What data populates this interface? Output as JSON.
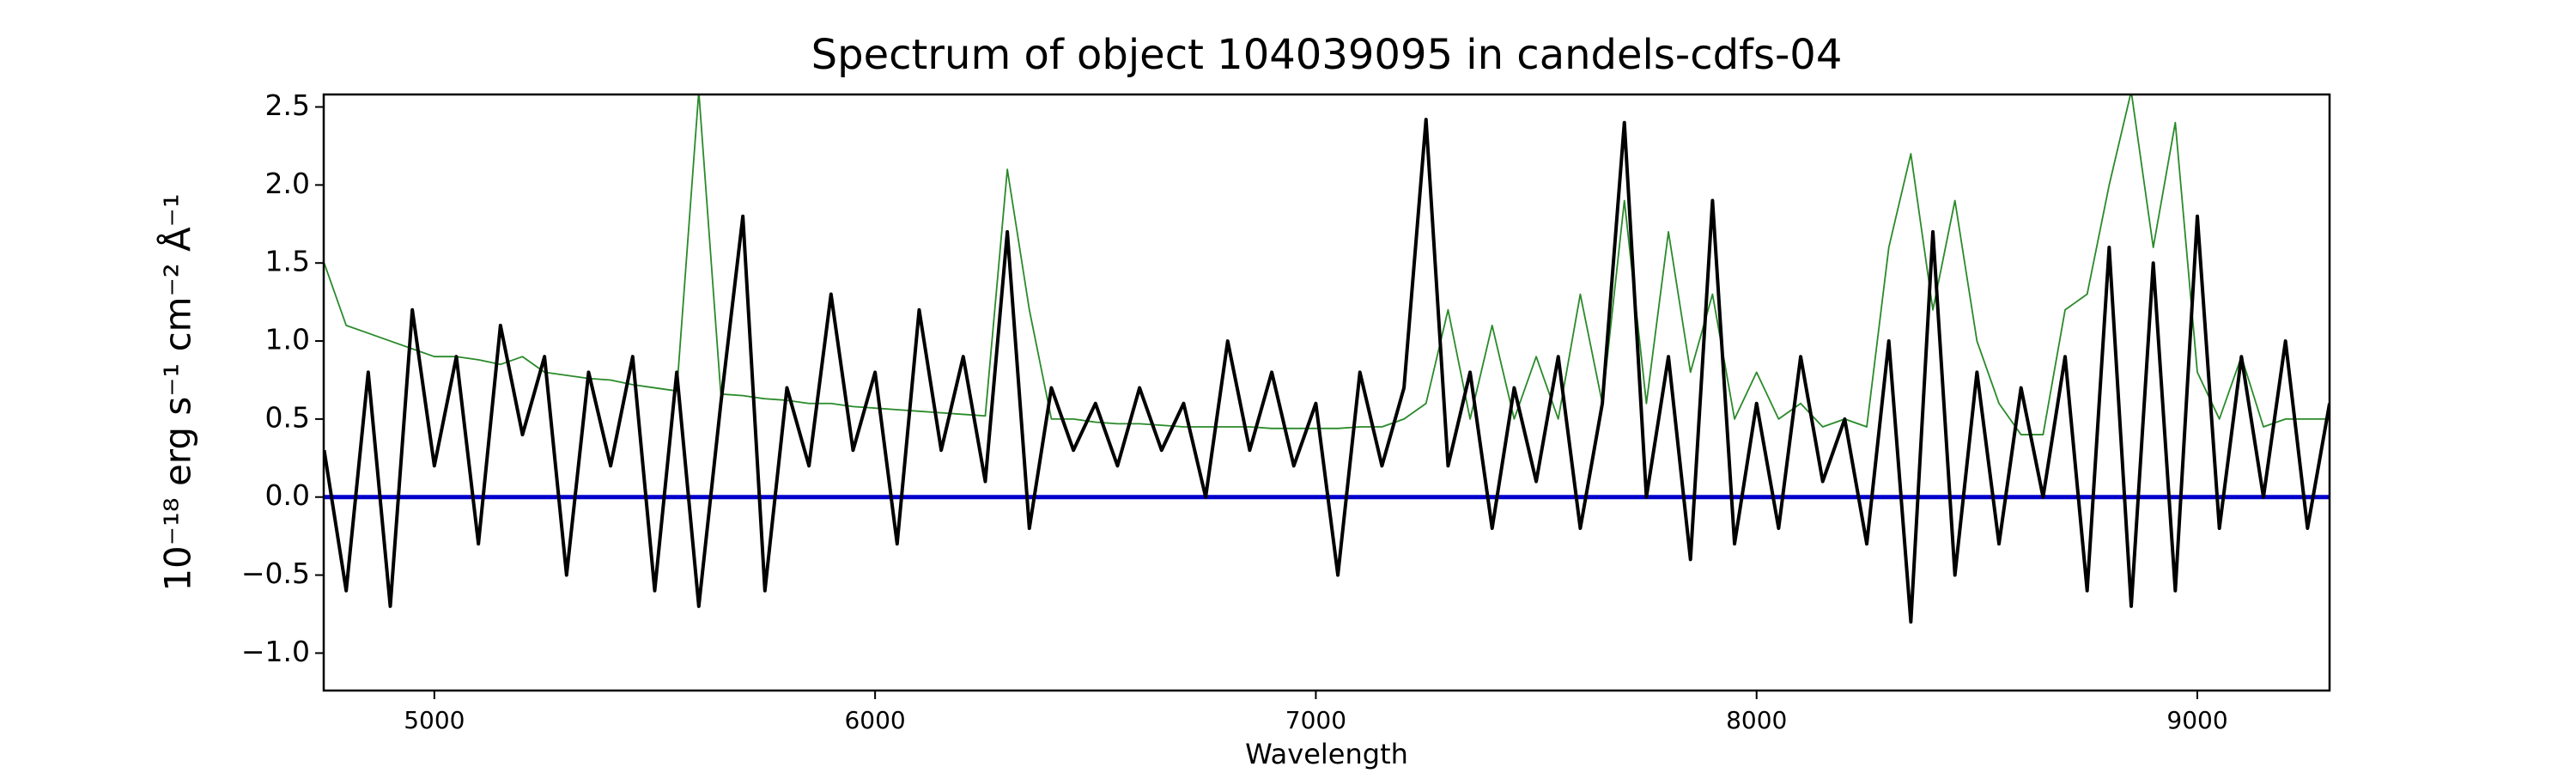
{
  "chart_data": {
    "type": "line",
    "title": "Spectrum of object 104039095 in candels-cdfs-04",
    "xlabel": "Wavelength",
    "ylabel": "10⁻¹⁸ erg s⁻¹ cm⁻² Å⁻¹",
    "x": [
      4750,
      4800,
      4850,
      4900,
      4950,
      5000,
      5050,
      5100,
      5150,
      5200,
      5250,
      5300,
      5350,
      5400,
      5450,
      5500,
      5550,
      5600,
      5650,
      5700,
      5750,
      5800,
      5850,
      5900,
      5950,
      6000,
      6050,
      6100,
      6150,
      6200,
      6250,
      6300,
      6350,
      6400,
      6450,
      6500,
      6550,
      6600,
      6650,
      6700,
      6750,
      6800,
      6850,
      6900,
      6950,
      7000,
      7050,
      7100,
      7150,
      7200,
      7250,
      7300,
      7350,
      7400,
      7450,
      7500,
      7550,
      7600,
      7650,
      7700,
      7750,
      7800,
      7850,
      7900,
      7950,
      8000,
      8050,
      8100,
      8150,
      8200,
      8250,
      8300,
      8350,
      8400,
      8450,
      8500,
      8550,
      8600,
      8650,
      8700,
      8750,
      8800,
      8850,
      8900,
      8950,
      9000,
      9050,
      9100,
      9150,
      9200,
      9250,
      9300
    ],
    "series": [
      {
        "color": "#2a8a2a",
        "width": 1.8,
        "values": [
          1.5,
          1.1,
          1.05,
          1.0,
          0.95,
          0.9,
          0.9,
          0.88,
          0.85,
          0.9,
          0.8,
          0.78,
          0.76,
          0.75,
          0.72,
          0.7,
          0.68,
          2.6,
          0.66,
          0.65,
          0.63,
          0.62,
          0.6,
          0.6,
          0.58,
          0.57,
          0.56,
          0.55,
          0.54,
          0.53,
          0.52,
          2.1,
          1.2,
          0.5,
          0.5,
          0.48,
          0.47,
          0.47,
          0.46,
          0.45,
          0.45,
          0.45,
          0.45,
          0.44,
          0.44,
          0.44,
          0.44,
          0.45,
          0.45,
          0.5,
          0.6,
          1.2,
          0.5,
          1.1,
          0.5,
          0.9,
          0.5,
          1.3,
          0.6,
          1.9,
          0.6,
          1.7,
          0.8,
          1.3,
          0.5,
          0.8,
          0.5,
          0.6,
          0.45,
          0.5,
          0.45,
          1.6,
          2.2,
          1.2,
          1.9,
          1.0,
          0.6,
          0.4,
          0.4,
          1.2,
          1.3,
          2.0,
          2.6,
          1.6,
          2.4,
          0.8,
          0.5,
          0.9,
          0.45,
          0.5,
          0.5,
          0.5
        ]
      },
      {
        "color": "#000000",
        "width": 4,
        "values": [
          0.3,
          -0.6,
          0.8,
          -0.7,
          1.2,
          0.2,
          0.9,
          -0.3,
          1.1,
          0.4,
          0.9,
          -0.5,
          0.8,
          0.2,
          0.9,
          -0.6,
          0.8,
          -0.7,
          0.6,
          1.8,
          -0.6,
          0.7,
          0.2,
          1.3,
          0.3,
          0.8,
          -0.3,
          1.2,
          0.3,
          0.9,
          0.1,
          1.7,
          -0.2,
          0.7,
          0.3,
          0.6,
          0.2,
          0.7,
          0.3,
          0.6,
          0.0,
          1.0,
          0.3,
          0.8,
          0.2,
          0.6,
          -0.5,
          0.8,
          0.2,
          0.7,
          2.42,
          0.2,
          0.8,
          -0.2,
          0.7,
          0.1,
          0.9,
          -0.2,
          0.6,
          2.4,
          0.0,
          0.9,
          -0.4,
          1.9,
          -0.3,
          0.6,
          -0.2,
          0.9,
          0.1,
          0.5,
          -0.3,
          1.0,
          -0.8,
          1.7,
          -0.5,
          0.8,
          -0.3,
          0.7,
          0.0,
          0.9,
          -0.6,
          1.6,
          -0.7,
          1.5,
          -0.6,
          1.8,
          -0.2,
          0.9,
          0.0,
          1.0,
          -0.2,
          0.6
        ]
      }
    ],
    "hline": {
      "value": 0,
      "color": "#0000cc"
    },
    "xlim": [
      4749,
      9300
    ],
    "xticks": [
      5000,
      6000,
      7000,
      8000,
      9000
    ],
    "ylim": [
      -1.24,
      2.58
    ],
    "yticks": [
      {
        "value": -1.0,
        "label": "−1.0"
      },
      {
        "value": -0.5,
        "label": "−0.5"
      },
      {
        "value": 0.0,
        "label": "0.0"
      },
      0.5,
      {
        "value": 1.0,
        "label": "1.0"
      },
      1.5,
      {
        "value": 2.0,
        "label": "2.0"
      },
      2.5
    ]
  }
}
